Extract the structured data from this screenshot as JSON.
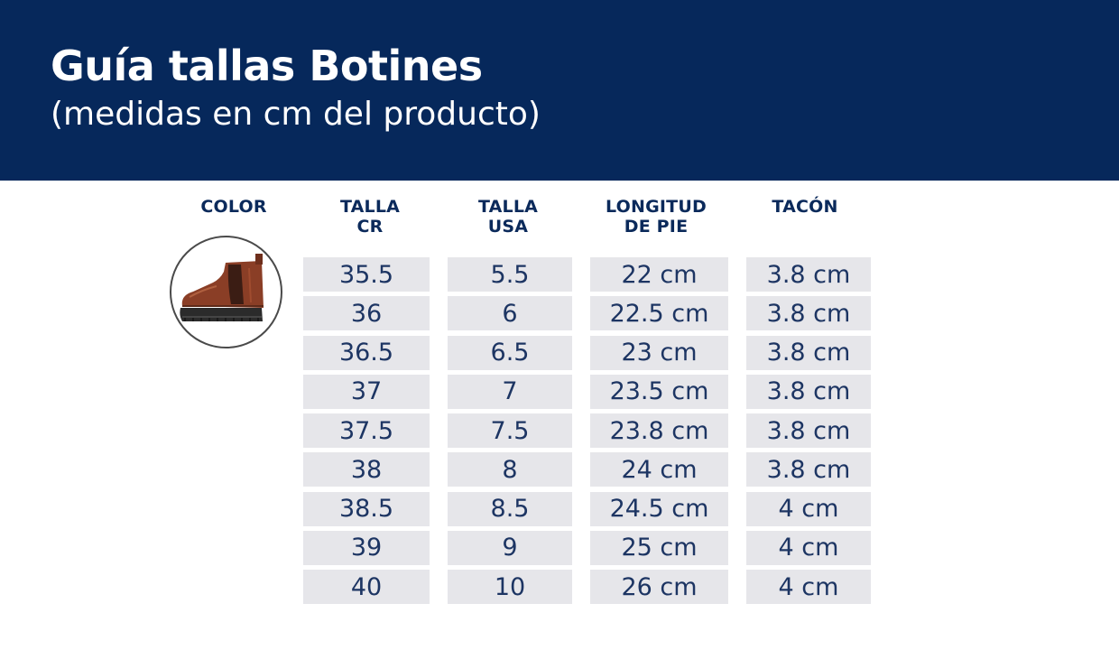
{
  "header": {
    "title": "Guía tallas Botines",
    "subtitle": "(medidas en cm del producto)"
  },
  "columns": {
    "color": "COLOR",
    "talla_cr": [
      "TALLA",
      "CR"
    ],
    "talla_usa": [
      "TALLA",
      "USA"
    ],
    "longitud": [
      "LONGITUD",
      "DE PIE"
    ],
    "tacon": "TACÓN"
  },
  "product_image": "ankle-boot-icon",
  "colors": {
    "header_bg": "#06285b",
    "cell_bg": "#e6e6ea",
    "heading_text": "#0b2a5b",
    "boot": "#8a3e26"
  },
  "rows": [
    {
      "cr": "35.5",
      "usa": "5.5",
      "longitud": "22 cm",
      "tacon": "3.8 cm"
    },
    {
      "cr": "36",
      "usa": "6",
      "longitud": "22.5 cm",
      "tacon": "3.8 cm"
    },
    {
      "cr": "36.5",
      "usa": "6.5",
      "longitud": "23 cm",
      "tacon": "3.8 cm"
    },
    {
      "cr": "37",
      "usa": "7",
      "longitud": "23.5 cm",
      "tacon": "3.8 cm"
    },
    {
      "cr": "37.5",
      "usa": "7.5",
      "longitud": "23.8 cm",
      "tacon": "3.8 cm"
    },
    {
      "cr": "38",
      "usa": "8",
      "longitud": "24 cm",
      "tacon": "3.8 cm"
    },
    {
      "cr": "38.5",
      "usa": "8.5",
      "longitud": "24.5 cm",
      "tacon": "4 cm"
    },
    {
      "cr": "39",
      "usa": "9",
      "longitud": "25 cm",
      "tacon": "4 cm"
    },
    {
      "cr": "40",
      "usa": "10",
      "longitud": "26 cm",
      "tacon": "4 cm"
    }
  ]
}
